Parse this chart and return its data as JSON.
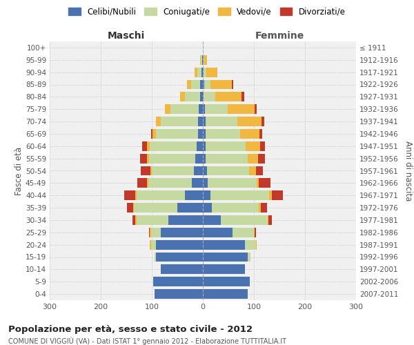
{
  "age_groups": [
    "0-4",
    "5-9",
    "10-14",
    "15-19",
    "20-24",
    "25-29",
    "30-34",
    "35-39",
    "40-44",
    "45-49",
    "50-54",
    "55-59",
    "60-64",
    "65-69",
    "70-74",
    "75-79",
    "80-84",
    "85-89",
    "90-94",
    "95-99",
    "100+"
  ],
  "birth_years": [
    "2007-2011",
    "2002-2006",
    "1997-2001",
    "1992-1996",
    "1987-1991",
    "1982-1986",
    "1977-1981",
    "1972-1976",
    "1967-1971",
    "1962-1966",
    "1957-1961",
    "1952-1956",
    "1947-1951",
    "1942-1946",
    "1937-1941",
    "1932-1936",
    "1927-1931",
    "1922-1926",
    "1917-1921",
    "1912-1916",
    "≤ 1911"
  ],
  "male": {
    "celibi": [
      95,
      97,
      82,
      92,
      92,
      82,
      68,
      50,
      35,
      22,
      18,
      15,
      12,
      10,
      10,
      8,
      5,
      5,
      3,
      2,
      0
    ],
    "coniugati": [
      0,
      0,
      0,
      2,
      10,
      20,
      62,
      85,
      95,
      85,
      82,
      90,
      92,
      82,
      72,
      55,
      30,
      18,
      8,
      2,
      0
    ],
    "vedovi": [
      0,
      0,
      0,
      0,
      2,
      2,
      2,
      2,
      2,
      2,
      3,
      4,
      5,
      7,
      10,
      12,
      10,
      8,
      5,
      2,
      0
    ],
    "divorziati": [
      0,
      0,
      0,
      0,
      0,
      2,
      6,
      12,
      22,
      20,
      18,
      14,
      10,
      2,
      0,
      0,
      0,
      0,
      0,
      0,
      0
    ]
  },
  "female": {
    "nubili": [
      88,
      92,
      82,
      88,
      82,
      58,
      35,
      18,
      15,
      10,
      8,
      6,
      6,
      5,
      5,
      4,
      2,
      3,
      2,
      1,
      0
    ],
    "coniugate": [
      0,
      0,
      0,
      5,
      22,
      42,
      92,
      92,
      115,
      95,
      82,
      82,
      78,
      68,
      62,
      45,
      22,
      12,
      5,
      2,
      0
    ],
    "vedove": [
      0,
      0,
      0,
      0,
      2,
      2,
      2,
      3,
      5,
      5,
      14,
      20,
      28,
      38,
      48,
      52,
      52,
      42,
      22,
      5,
      0
    ],
    "divorziate": [
      0,
      0,
      0,
      0,
      0,
      2,
      6,
      12,
      22,
      22,
      14,
      14,
      9,
      5,
      5,
      5,
      5,
      2,
      0,
      0,
      0
    ]
  },
  "colors": {
    "celibi": "#4a72b0",
    "coniugati": "#c5d9a0",
    "vedovi": "#f0b840",
    "divorziati": "#c0392b"
  },
  "legend_labels": [
    "Celibi/Nubili",
    "Coniugati/e",
    "Vedovi/e",
    "Divorziati/e"
  ],
  "xlabel_left": "Maschi",
  "xlabel_right": "Femmine",
  "ylabel_left": "Fasce di età",
  "ylabel_right": "Anni di nascita",
  "title": "Popolazione per età, sesso e stato civile - 2012",
  "subtitle": "COMUNE DI VIGGIÙ (VA) - Dati ISTAT 1° gennaio 2012 - Elaborazione TUTTITALIA.IT",
  "xlim": 300,
  "bg_color": "#f0f0f0",
  "grid_color": "#cccccc"
}
